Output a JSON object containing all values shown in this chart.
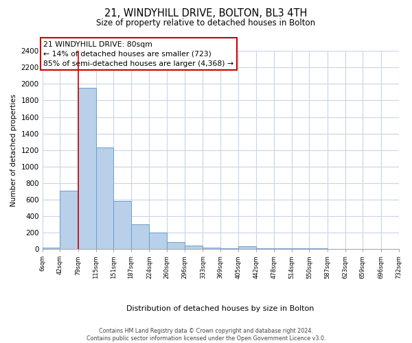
{
  "title": "21, WINDYHILL DRIVE, BOLTON, BL3 4TH",
  "subtitle": "Size of property relative to detached houses in Bolton",
  "xlabel": "Distribution of detached houses by size in Bolton",
  "ylabel": "Number of detached properties",
  "bin_edges": [
    6,
    42,
    79,
    115,
    151,
    187,
    224,
    260,
    296,
    333,
    369,
    405,
    442,
    478,
    514,
    550,
    587,
    623,
    659,
    696,
    732
  ],
  "bar_heights": [
    15,
    710,
    1950,
    1230,
    580,
    300,
    200,
    80,
    40,
    20,
    10,
    30,
    10,
    5,
    5,
    5,
    3,
    2,
    2,
    2
  ],
  "bar_color": "#b8d0ea",
  "bar_edge_color": "#6a9ec8",
  "property_size": 79,
  "vline_color": "#cc0000",
  "annotation_line1": "21 WINDYHILL DRIVE: 80sqm",
  "annotation_line2": "← 14% of detached houses are smaller (723)",
  "annotation_line3": "85% of semi-detached houses are larger (4,368) →",
  "annotation_box_edgecolor": "#cc0000",
  "ylim": [
    0,
    2400
  ],
  "yticks": [
    0,
    200,
    400,
    600,
    800,
    1000,
    1200,
    1400,
    1600,
    1800,
    2000,
    2200,
    2400
  ],
  "tick_labels": [
    "6sqm",
    "42sqm",
    "79sqm",
    "115sqm",
    "151sqm",
    "187sqm",
    "224sqm",
    "260sqm",
    "296sqm",
    "333sqm",
    "369sqm",
    "405sqm",
    "442sqm",
    "478sqm",
    "514sqm",
    "550sqm",
    "587sqm",
    "623sqm",
    "659sqm",
    "696sqm",
    "732sqm"
  ],
  "footer_text": "Contains HM Land Registry data © Crown copyright and database right 2024.\nContains public sector information licensed under the Open Government Licence v3.0.",
  "background_color": "#ffffff",
  "grid_color": "#c8d4e8"
}
